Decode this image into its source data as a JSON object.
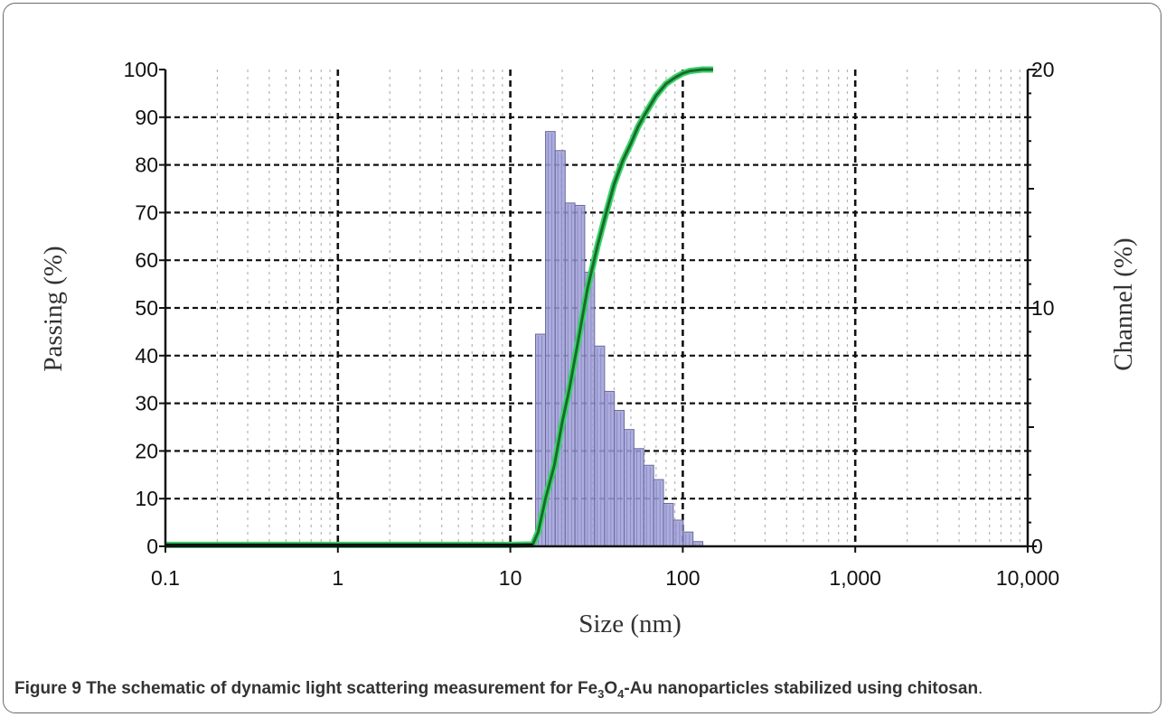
{
  "caption": {
    "label": "Figure 9",
    "text_before": "The schematic of dynamic light scattering measurement for Fe",
    "sub1": "3",
    "text_mid1": "O",
    "sub2": "4",
    "text_after": "-Au nanoparticles stabilized using chitosan",
    "period": "."
  },
  "chart_data": {
    "type": "bar",
    "xlabel": "Size (nm)",
    "ylabel_left": "Passing (%)",
    "ylabel_right": "Channel (%)",
    "x_scale": "log",
    "xlim": [
      0.1,
      10000
    ],
    "x_ticks": [
      "0.1",
      "1",
      "10",
      "100",
      "1,000",
      "10,000"
    ],
    "ylim_left": [
      0,
      100
    ],
    "y_ticks_left": [
      "0",
      "10",
      "20",
      "30",
      "40",
      "50",
      "60",
      "70",
      "80",
      "90",
      "100"
    ],
    "ylim_right": [
      0,
      20
    ],
    "y_ticks_right": [
      "0",
      "10",
      "20"
    ],
    "grid": true,
    "series": [
      {
        "kind": "histogram",
        "axis": "right",
        "color": "#9f9fd8",
        "bins": [
          {
            "x0": 14.0,
            "x1": 16.0,
            "value": 8.9
          },
          {
            "x0": 16.0,
            "x1": 18.2,
            "value": 17.4
          },
          {
            "x0": 18.2,
            "x1": 20.8,
            "value": 16.6
          },
          {
            "x0": 20.8,
            "x1": 23.7,
            "value": 14.4
          },
          {
            "x0": 23.7,
            "x1": 27.0,
            "value": 14.3
          },
          {
            "x0": 27.0,
            "x1": 30.8,
            "value": 11.5
          },
          {
            "x0": 30.8,
            "x1": 35.2,
            "value": 8.4
          },
          {
            "x0": 35.2,
            "x1": 40.1,
            "value": 6.5
          },
          {
            "x0": 40.1,
            "x1": 45.7,
            "value": 5.7
          },
          {
            "x0": 45.7,
            "x1": 52.1,
            "value": 4.9
          },
          {
            "x0": 52.1,
            "x1": 59.4,
            "value": 4.1
          },
          {
            "x0": 59.4,
            "x1": 67.8,
            "value": 3.4
          },
          {
            "x0": 67.8,
            "x1": 77.3,
            "value": 2.8
          },
          {
            "x0": 77.3,
            "x1": 88.1,
            "value": 1.8
          },
          {
            "x0": 88.1,
            "x1": 100.5,
            "value": 1.1
          },
          {
            "x0": 100.5,
            "x1": 114.6,
            "value": 0.6
          },
          {
            "x0": 114.6,
            "x1": 130.7,
            "value": 0.2
          }
        ]
      },
      {
        "kind": "line",
        "axis": "left",
        "color": "#1a6b2a",
        "halo": "#39d36a",
        "points": [
          [
            0.1,
            0.3
          ],
          [
            1,
            0.3
          ],
          [
            10,
            0.3
          ],
          [
            13.5,
            0.4
          ],
          [
            14.5,
            3
          ],
          [
            16,
            10
          ],
          [
            18,
            17
          ],
          [
            20,
            26
          ],
          [
            22,
            33
          ],
          [
            25,
            44
          ],
          [
            28,
            54
          ],
          [
            32,
            63
          ],
          [
            36,
            70
          ],
          [
            40,
            76
          ],
          [
            45,
            81
          ],
          [
            50,
            84.5
          ],
          [
            55,
            88
          ],
          [
            60,
            90.5
          ],
          [
            70,
            94.5
          ],
          [
            80,
            97
          ],
          [
            90,
            98.3
          ],
          [
            100,
            99.2
          ],
          [
            110,
            99.7
          ],
          [
            130,
            100
          ],
          [
            150,
            100
          ]
        ]
      },
      {
        "kind": "line",
        "axis": "left",
        "color": "#111111",
        "points": [
          [
            0.1,
            0.3
          ],
          [
            13.5,
            0.3
          ]
        ]
      }
    ]
  }
}
